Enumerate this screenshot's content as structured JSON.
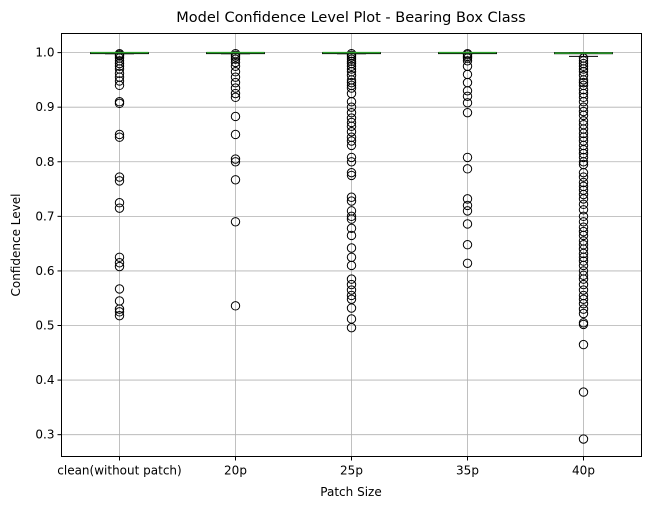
{
  "chart_data": {
    "type": "boxplot",
    "title": "Model Confidence Level Plot - Bearing Box Class",
    "xlabel": "Patch Size",
    "ylabel": "Confidence Level",
    "categories": [
      "clean(without patch)",
      "20p",
      "25p",
      "35p",
      "40p"
    ],
    "ylim": [
      0.26,
      1.035
    ],
    "yticks": [
      0.3,
      0.4,
      0.5,
      0.6,
      0.7,
      0.8,
      0.9,
      1.0
    ],
    "ytick_labels": [
      "0.3",
      "0.4",
      "0.5",
      "0.6",
      "0.7",
      "0.8",
      "0.9",
      "1.0"
    ],
    "grid": true,
    "median_color": "#2ca02c",
    "boxes": [
      {
        "name": "clean(without patch)",
        "q1": 0.999,
        "median": 1.0,
        "q3": 1.0,
        "whisker_low": 0.998,
        "whisker_high": 1.0,
        "fliers": [
          0.998,
          0.996,
          0.994,
          0.99,
          0.985,
          0.98,
          0.975,
          0.97,
          0.962,
          0.955,
          0.948,
          0.94,
          0.91,
          0.907,
          0.85,
          0.845,
          0.772,
          0.765,
          0.725,
          0.715,
          0.625,
          0.615,
          0.608,
          0.567,
          0.545,
          0.53,
          0.525,
          0.518
        ]
      },
      {
        "name": "20p",
        "q1": 0.999,
        "median": 1.0,
        "q3": 1.0,
        "whisker_low": 0.998,
        "whisker_high": 1.0,
        "fliers": [
          0.998,
          0.995,
          0.992,
          0.988,
          0.982,
          0.975,
          0.965,
          0.955,
          0.945,
          0.935,
          0.925,
          0.918,
          0.883,
          0.85,
          0.805,
          0.8,
          0.767,
          0.69,
          0.536
        ]
      },
      {
        "name": "25p",
        "q1": 0.999,
        "median": 1.0,
        "q3": 1.0,
        "whisker_low": 0.998,
        "whisker_high": 1.0,
        "fliers": [
          0.998,
          0.995,
          0.992,
          0.988,
          0.984,
          0.98,
          0.975,
          0.97,
          0.965,
          0.958,
          0.95,
          0.945,
          0.94,
          0.935,
          0.925,
          0.91,
          0.9,
          0.89,
          0.88,
          0.872,
          0.865,
          0.855,
          0.845,
          0.838,
          0.83,
          0.808,
          0.8,
          0.78,
          0.775,
          0.735,
          0.728,
          0.71,
          0.7,
          0.695,
          0.678,
          0.665,
          0.642,
          0.625,
          0.61,
          0.585,
          0.575,
          0.565,
          0.555,
          0.548,
          0.532,
          0.512,
          0.496
        ]
      },
      {
        "name": "35p",
        "q1": 0.9995,
        "median": 1.0,
        "q3": 1.0,
        "whisker_low": 0.999,
        "whisker_high": 1.0,
        "fliers": [
          0.998,
          0.996,
          0.993,
          0.99,
          0.985,
          0.975,
          0.96,
          0.945,
          0.93,
          0.92,
          0.908,
          0.89,
          0.808,
          0.787,
          0.732,
          0.72,
          0.71,
          0.686,
          0.648,
          0.614
        ]
      },
      {
        "name": "40p",
        "q1": 0.998,
        "median": 0.999,
        "q3": 1.0,
        "whisker_low": 0.993,
        "whisker_high": 1.0,
        "fliers": [
          0.99,
          0.985,
          0.98,
          0.975,
          0.97,
          0.965,
          0.958,
          0.95,
          0.945,
          0.94,
          0.932,
          0.925,
          0.918,
          0.91,
          0.9,
          0.892,
          0.885,
          0.875,
          0.868,
          0.86,
          0.852,
          0.845,
          0.838,
          0.83,
          0.822,
          0.815,
          0.808,
          0.8,
          0.795,
          0.78,
          0.772,
          0.762,
          0.755,
          0.748,
          0.74,
          0.732,
          0.722,
          0.712,
          0.7,
          0.69,
          0.68,
          0.672,
          0.665,
          0.655,
          0.648,
          0.64,
          0.632,
          0.625,
          0.618,
          0.61,
          0.6,
          0.592,
          0.585,
          0.575,
          0.565,
          0.555,
          0.548,
          0.54,
          0.53,
          0.522,
          0.505,
          0.502,
          0.465,
          0.378,
          0.292
        ]
      }
    ]
  }
}
